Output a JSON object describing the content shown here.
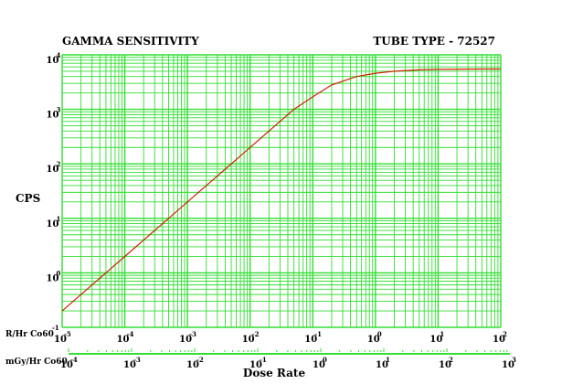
{
  "chart_data": {
    "type": "line",
    "title": "GAMMA SENSITIVITY",
    "subtitle": "TUBE TYPE - 72527",
    "xlabel": "Dose Rate",
    "ylabel": "CPS",
    "x_scale": "log",
    "y_scale": "log",
    "xlim": [
      1e-05,
      100
    ],
    "ylim": [
      0.1,
      10000
    ],
    "grid": true,
    "colors": {
      "grid": "#33dd33",
      "line": "#cc2200",
      "axis_bar": "#33dd33"
    },
    "x_axes": [
      {
        "name": "R/Hr Co60",
        "ticks": [
          {
            "base": "10",
            "exp": "-5"
          },
          {
            "base": "10",
            "exp": "-4"
          },
          {
            "base": "10",
            "exp": "-3"
          },
          {
            "base": "10",
            "exp": "-2"
          },
          {
            "base": "10",
            "exp": "-1"
          },
          {
            "base": "10",
            "exp": "0"
          },
          {
            "base": "10",
            "exp": "1"
          },
          {
            "base": "10",
            "exp": "2"
          }
        ]
      },
      {
        "name": "mGy/Hr Co60",
        "ticks": [
          {
            "base": "10",
            "exp": "-4"
          },
          {
            "base": "10",
            "exp": "-3"
          },
          {
            "base": "10",
            "exp": "-2"
          },
          {
            "base": "10",
            "exp": "-1"
          },
          {
            "base": "10",
            "exp": "0"
          },
          {
            "base": "10",
            "exp": "1"
          },
          {
            "base": "10",
            "exp": "2"
          },
          {
            "base": "10",
            "exp": "3"
          }
        ]
      }
    ],
    "y_ticks": [
      {
        "base": "10",
        "exp": "4"
      },
      {
        "base": "10",
        "exp": "3"
      },
      {
        "base": "10",
        "exp": "2"
      },
      {
        "base": "10",
        "exp": "1"
      },
      {
        "base": "10",
        "exp": "0"
      },
      {
        "base": "",
        "exp": "-1"
      }
    ],
    "series": [
      {
        "x": [
          1e-05,
          0.0001,
          0.001,
          0.01,
          0.05,
          0.1,
          0.2,
          0.5,
          1,
          2,
          5,
          10,
          50,
          100
        ],
        "y": [
          0.2,
          2,
          20,
          200,
          1000,
          1700,
          2800,
          4000,
          4600,
          5000,
          5300,
          5400,
          5500,
          5500
        ]
      }
    ]
  }
}
